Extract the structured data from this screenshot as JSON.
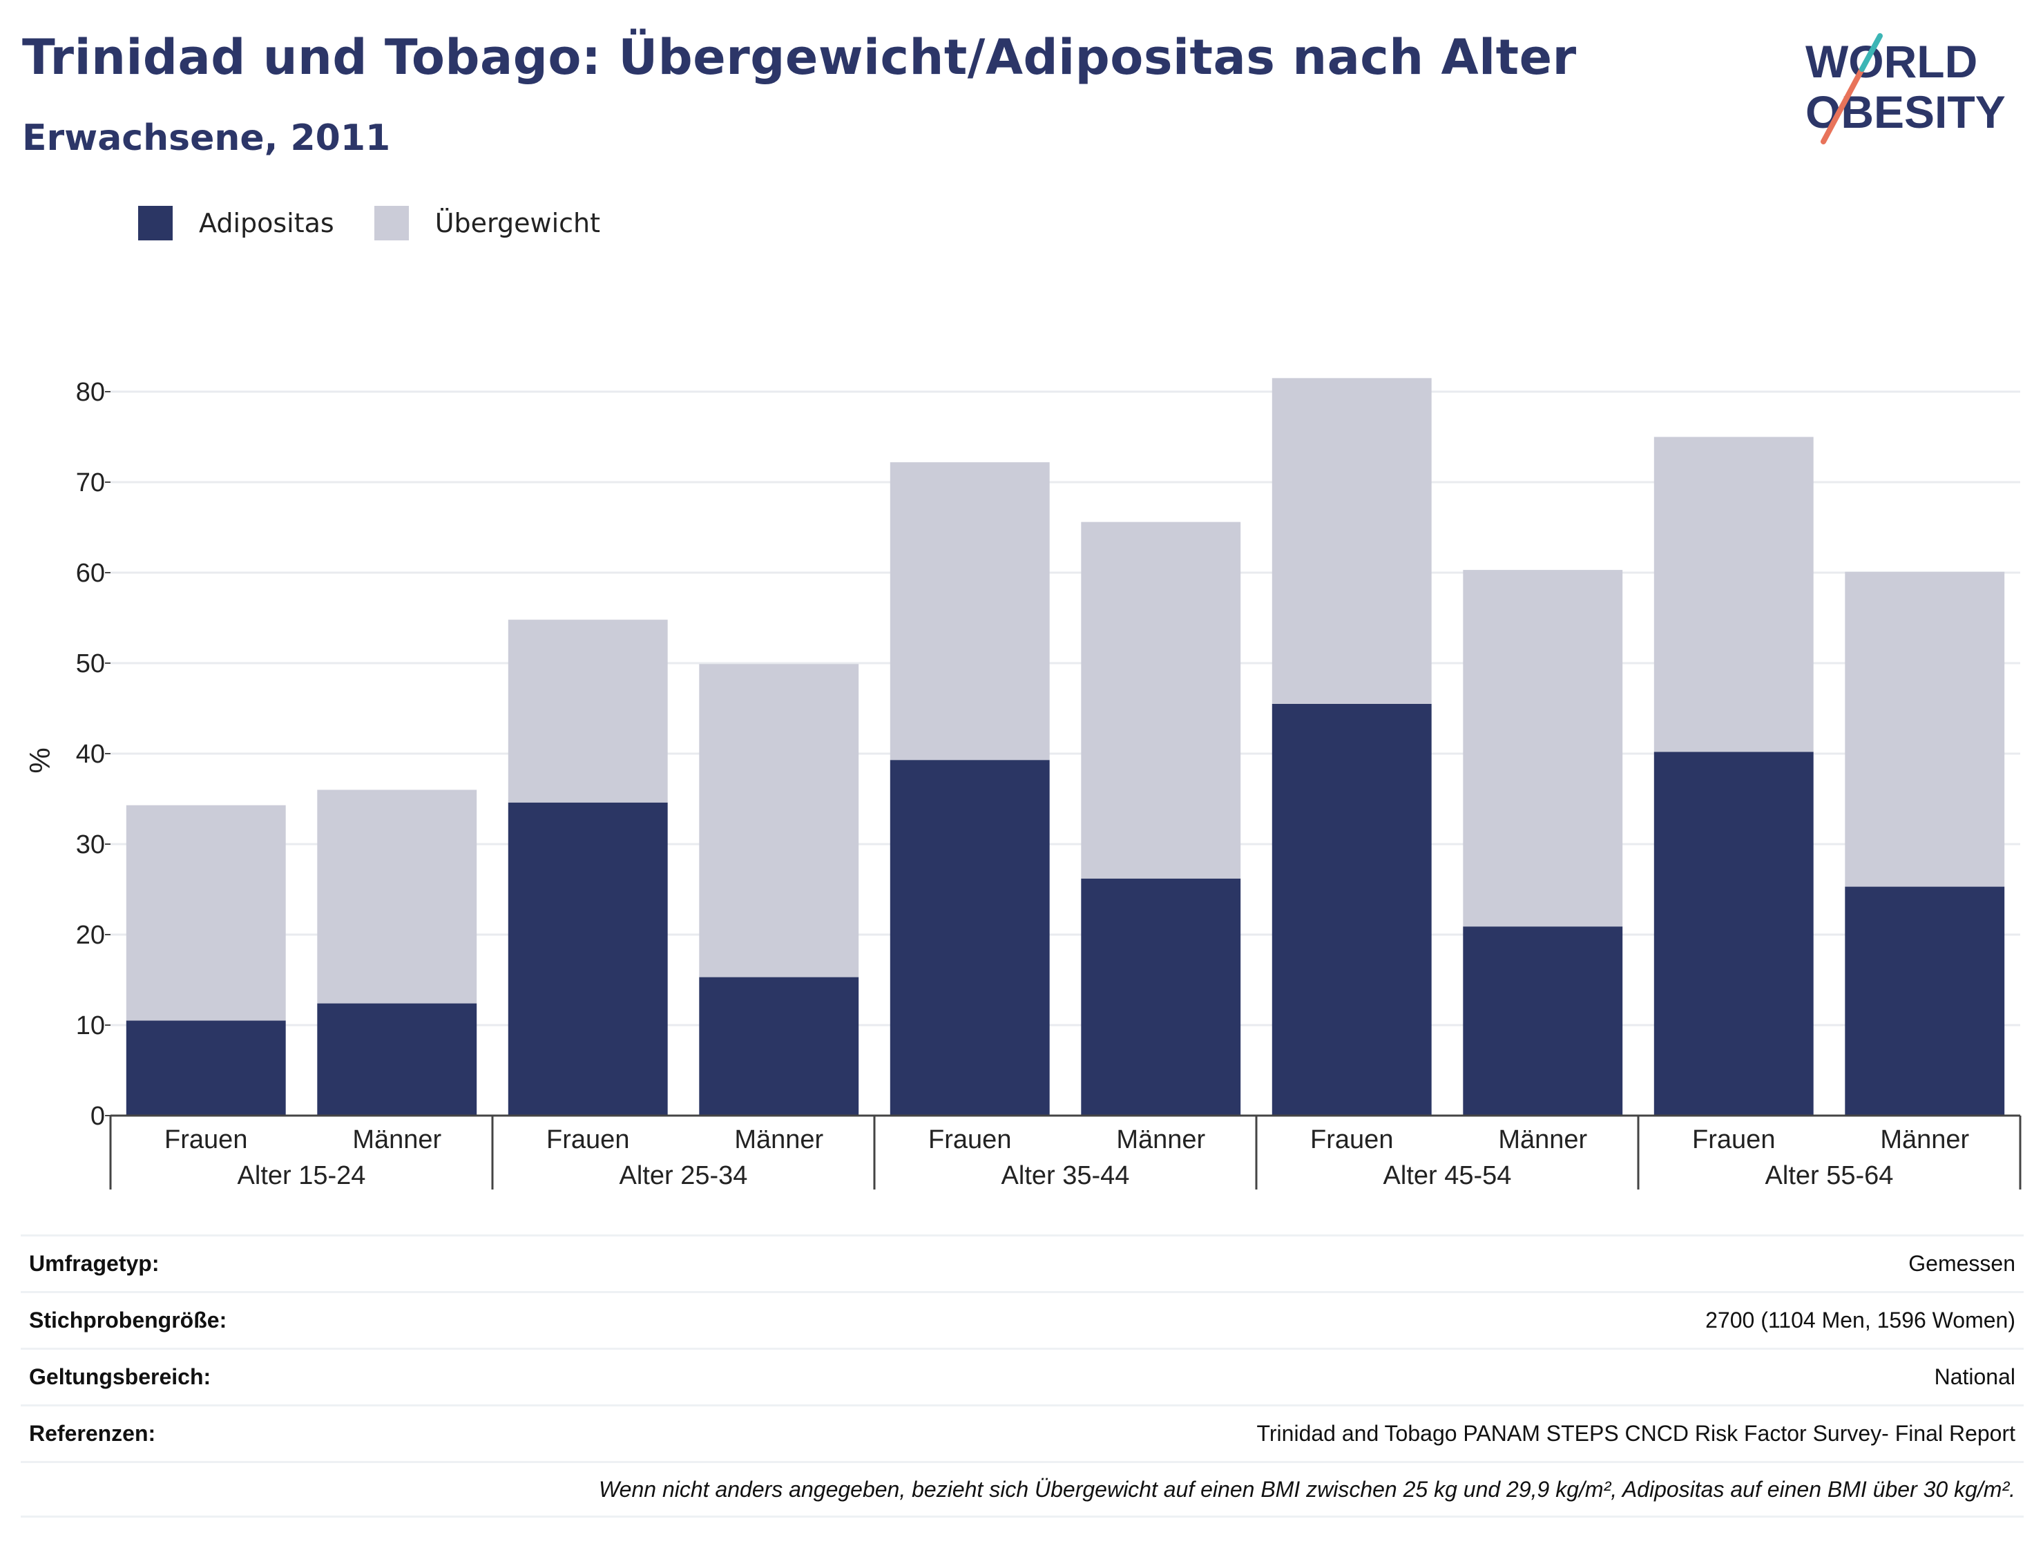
{
  "header": {
    "title": "Trinidad und Tobago: Übergewicht/Adipositas nach Alter",
    "subtitle": "Erwachsene, 2011"
  },
  "logo": {
    "line1": "WORLD",
    "line2": "OBESITY",
    "colors": [
      "#2c3668",
      "#e8735a",
      "#3cb5b5"
    ]
  },
  "legend": [
    {
      "label": "Adipositas",
      "color": "#2b3664"
    },
    {
      "label": "Übergewicht",
      "color": "#cbccd8"
    }
  ],
  "chart_data": {
    "type": "bar",
    "stacked": true,
    "ylabel": "%",
    "ylim": [
      0,
      85
    ],
    "yticks": [
      0,
      10,
      20,
      30,
      40,
      50,
      60,
      70,
      80
    ],
    "grid": true,
    "legend_position": "top-left",
    "groups": [
      "Alter 15-24",
      "Alter 25-34",
      "Alter 35-44",
      "Alter 45-54",
      "Alter 55-64"
    ],
    "subcategories": [
      "Frauen",
      "Männer"
    ],
    "series": [
      {
        "name": "Adipositas",
        "color": "#2b3664",
        "values": [
          10.5,
          12.4,
          34.6,
          15.3,
          39.3,
          26.2,
          45.5,
          20.9,
          40.2,
          25.3
        ]
      },
      {
        "name": "Übergewicht",
        "color": "#cbccd8",
        "values": [
          23.8,
          23.6,
          20.2,
          34.6,
          32.9,
          39.4,
          36.0,
          39.4,
          34.8,
          34.8
        ]
      }
    ]
  },
  "info": [
    {
      "key": "Umfragetyp:",
      "value": "Gemessen"
    },
    {
      "key": "Stichprobengröße:",
      "value": "2700 (1104 Men, 1596 Women)"
    },
    {
      "key": "Geltungsbereich:",
      "value": "National"
    },
    {
      "key": "Referenzen:",
      "value": "Trinidad and Tobago PANAM STEPS CNCD Risk Factor Survey- Final Report"
    }
  ],
  "note": "Wenn nicht anders angegeben, bezieht sich Übergewicht auf einen BMI zwischen 25 kg und 29,9 kg/m², Adipositas auf einen BMI über 30 kg/m²."
}
